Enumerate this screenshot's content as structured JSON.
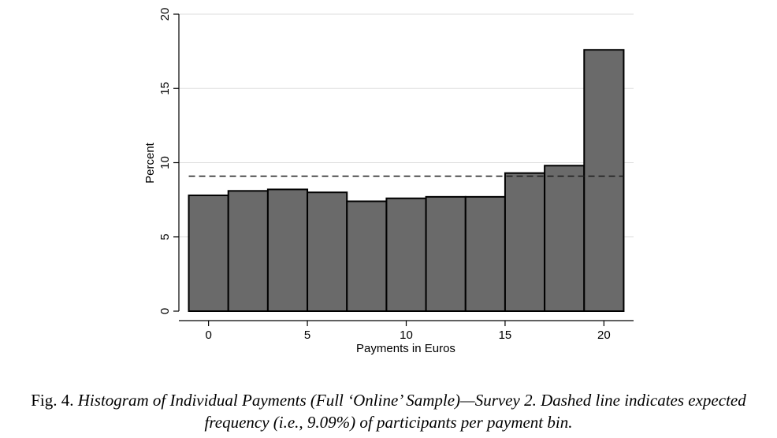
{
  "chart_data": {
    "type": "bar",
    "bins": [
      {
        "x0": -1,
        "x1": 1,
        "value": 7.8
      },
      {
        "x0": 1,
        "x1": 3,
        "value": 8.1
      },
      {
        "x0": 3,
        "x1": 5,
        "value": 8.2
      },
      {
        "x0": 5,
        "x1": 7,
        "value": 8.0
      },
      {
        "x0": 7,
        "x1": 9,
        "value": 7.4
      },
      {
        "x0": 9,
        "x1": 11,
        "value": 7.6
      },
      {
        "x0": 11,
        "x1": 13,
        "value": 7.7
      },
      {
        "x0": 13,
        "x1": 15,
        "value": 7.7
      },
      {
        "x0": 15,
        "x1": 17,
        "value": 9.3
      },
      {
        "x0": 17,
        "x1": 19,
        "value": 9.8
      },
      {
        "x0": 19,
        "x1": 21,
        "value": 17.6
      }
    ],
    "reference_line": {
      "y": 9.09,
      "style": "dashed"
    },
    "xlabel": "Payments in Euros",
    "ylabel": "Percent",
    "xlim": [
      -1.5,
      21.5
    ],
    "ylim": [
      0,
      20
    ],
    "xticks": [
      0,
      5,
      10,
      15,
      20
    ],
    "yticks": [
      0,
      5,
      10,
      15,
      20
    ],
    "grid": "horizontal",
    "bar_color": "#6a6a6a"
  },
  "caption": {
    "lead": "Fig. 4.",
    "body": "Histogram of Individual Payments (Full ‘Online’ Sample)—Survey 2. Dashed line indicates expected frequency (i.e., 9.09%) of participants per payment bin."
  }
}
